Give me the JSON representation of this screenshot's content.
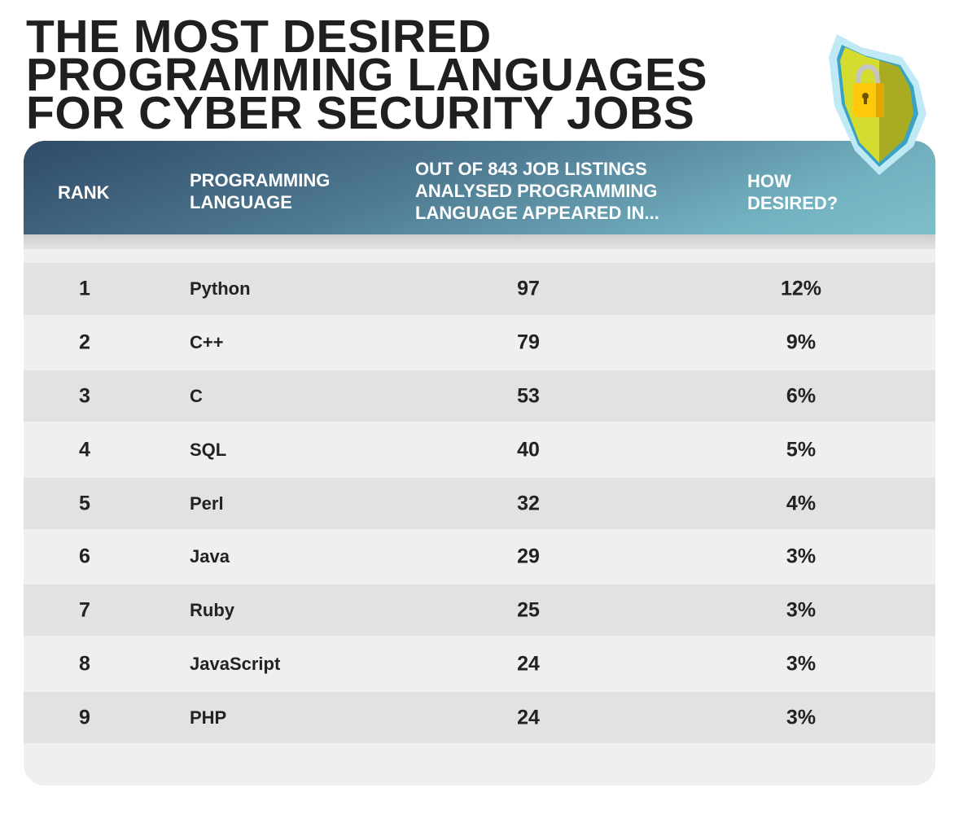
{
  "title": [
    "THE MOST DESIRED",
    "PROGRAMMING LANGUAGES",
    "FOR CYBER SECURITY JOBS"
  ],
  "colors": {
    "header_dark": "#2f4a68",
    "header_light": "#7dbfc9",
    "row_dark": "#e2e2e2",
    "row_light": "#efefef"
  },
  "icon": "shield-padlock-icon",
  "chart_data": {
    "type": "table",
    "columns": [
      [
        "RANK"
      ],
      [
        "PROGRAMMING",
        "LANGUAGE"
      ],
      [
        "OUT OF 843 JOB LISTINGS",
        "ANALYSED PROGRAMMING",
        "LANGUAGE APPEARED IN..."
      ],
      [
        "HOW",
        "DESIRED?"
      ]
    ],
    "rows": [
      {
        "rank": "1",
        "language": "Python",
        "count": "97",
        "pct": "12%"
      },
      {
        "rank": "2",
        "language": "C++",
        "count": "79",
        "pct": "9%"
      },
      {
        "rank": "3",
        "language": "C",
        "count": "53",
        "pct": "6%"
      },
      {
        "rank": "4",
        "language": "SQL",
        "count": "40",
        "pct": "5%"
      },
      {
        "rank": "5",
        "language": "Perl",
        "count": "32",
        "pct": "4%"
      },
      {
        "rank": "6",
        "language": "Java",
        "count": "29",
        "pct": "3%"
      },
      {
        "rank": "7",
        "language": "Ruby",
        "count": "25",
        "pct": "3%"
      },
      {
        "rank": "8",
        "language": "JavaScript",
        "count": "24",
        "pct": "3%"
      },
      {
        "rank": "9",
        "language": "PHP",
        "count": "24",
        "pct": "3%"
      }
    ]
  }
}
